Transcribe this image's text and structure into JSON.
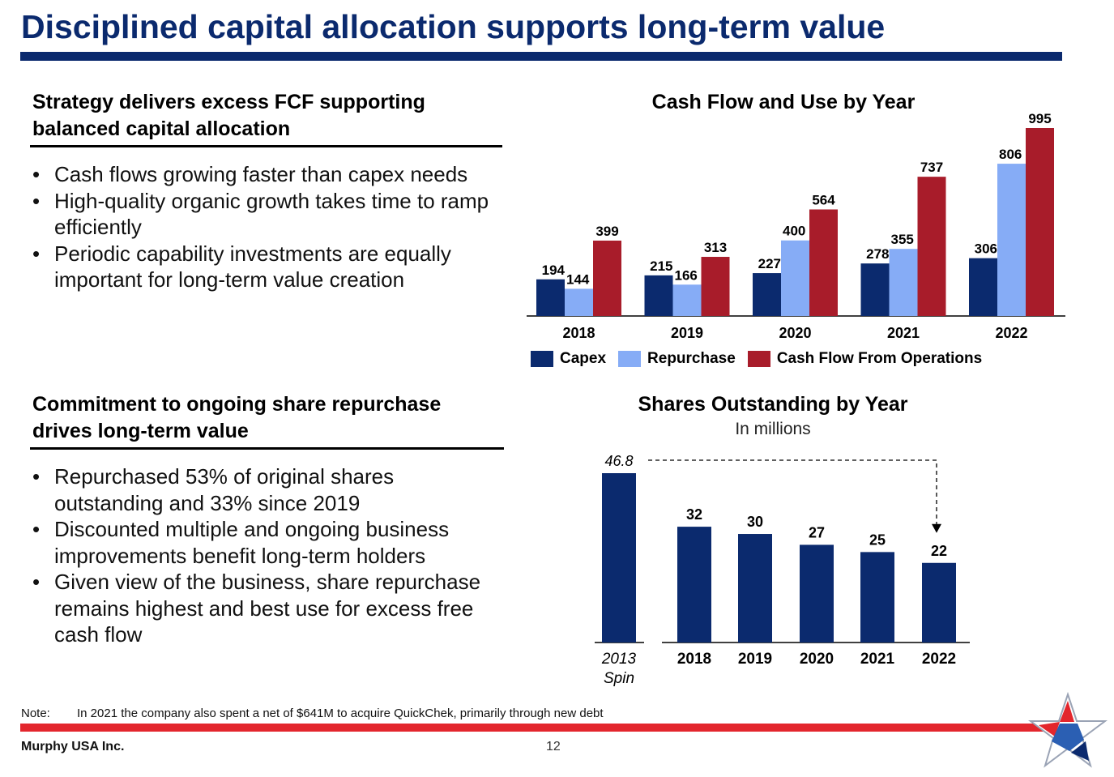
{
  "title": "Disciplined capital allocation supports long-term value",
  "section1": {
    "heading_line1": "Strategy delivers excess FCF supporting",
    "heading_line2": "balanced capital allocation",
    "bullets": [
      "Cash flows growing faster than capex needs",
      "High-quality organic growth takes time to ramp efficiently",
      "Periodic capability investments are equally important for long-term value creation"
    ]
  },
  "section2": {
    "heading_line1": "Commitment to ongoing share repurchase",
    "heading_line2": "drives long-term value",
    "bullets": [
      "Repurchased 53% of original shares outstanding and 33% since 2019",
      "Discounted multiple and ongoing business improvements benefit long-term holders",
      "Given view of the business, share repurchase remains highest and best use for excess free cash flow"
    ]
  },
  "chart_data": [
    {
      "type": "bar",
      "title": "Cash Flow and Use by Year",
      "categories": [
        "2018",
        "2019",
        "2020",
        "2021",
        "2022"
      ],
      "series": [
        {
          "name": "Capex",
          "values": [
            194,
            215,
            227,
            278,
            306
          ],
          "color": "#0b2a6e"
        },
        {
          "name": "Repurchase",
          "values": [
            144,
            166,
            400,
            355,
            806
          ],
          "color": "#86acf6"
        },
        {
          "name": "Cash Flow From Operations",
          "values": [
            399,
            313,
            564,
            737,
            995
          ],
          "color": "#a81c2a"
        }
      ],
      "ylim": [
        0,
        995
      ],
      "grid": false,
      "legend": "bottom"
    },
    {
      "type": "bar",
      "title": "Shares Outstanding by Year",
      "subtitle": "In millions",
      "categories": [
        "2013 Spin",
        "2018",
        "2019",
        "2020",
        "2021",
        "2022"
      ],
      "category_lines": [
        [
          "2013",
          "Spin"
        ],
        [
          "2018"
        ],
        [
          "2019"
        ],
        [
          "2020"
        ],
        [
          "2021"
        ],
        [
          "2022"
        ]
      ],
      "values": [
        46.8,
        32,
        30,
        27,
        25,
        22
      ],
      "value_labels": [
        "46.8",
        "32",
        "30",
        "27",
        "25",
        "22"
      ],
      "color": "#0b2a6e",
      "ylim": [
        0,
        46.8
      ],
      "grid": false
    }
  ],
  "note": {
    "label": "Note:",
    "text": "In 2021 the company also spent a net of $641M to acquire QuickChek, primarily through new debt"
  },
  "footer": {
    "company": "Murphy USA Inc.",
    "page_number": "12"
  },
  "colors": {
    "brand_navy": "#0b2a6e",
    "brand_red": "#e3262d",
    "light_blue": "#86acf6",
    "dark_red": "#a81c2a"
  }
}
